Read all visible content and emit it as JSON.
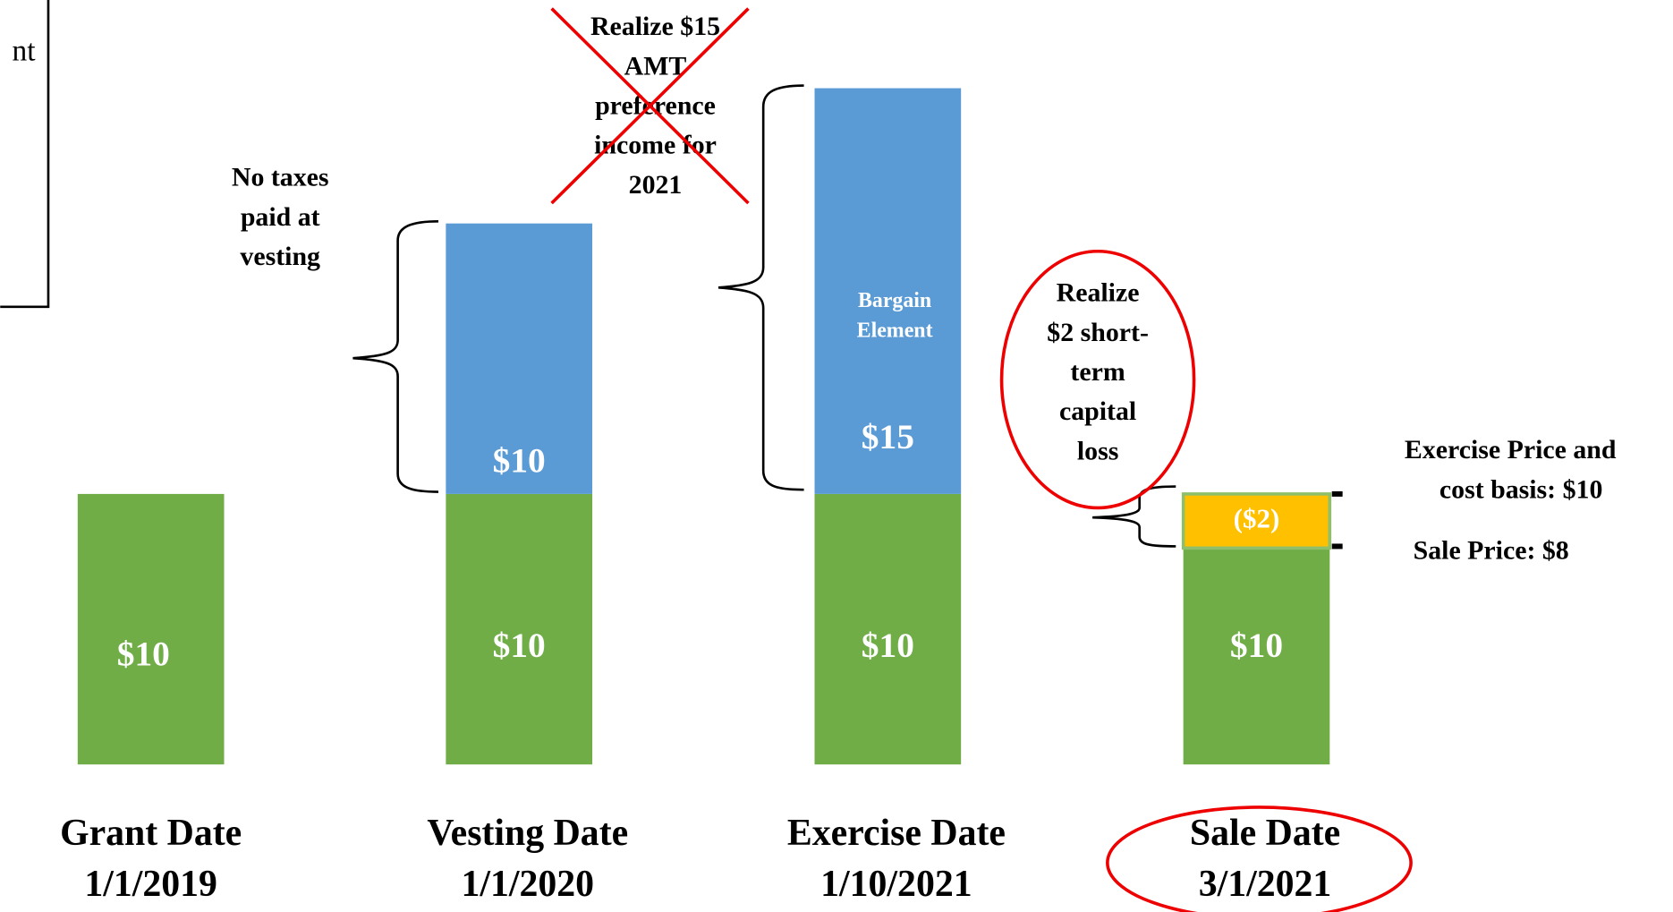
{
  "chart_data": {
    "type": "bar",
    "categories": [
      "Grant Date",
      "Vesting Date",
      "Exercise Date",
      "Sale Date"
    ],
    "dates": [
      "1/1/2019",
      "1/1/2020",
      "1/10/2021",
      "3/1/2021"
    ],
    "ylim": [
      0,
      25
    ],
    "series": [
      {
        "color": "#70ad47",
        "values": [
          10,
          10,
          10,
          10
        ],
        "value_labels": [
          "$10",
          "$10",
          "$10",
          "$10"
        ]
      },
      {
        "color": "#5b9bd5",
        "values": [
          null,
          10,
          15,
          null
        ],
        "value_labels": [
          null,
          "$10",
          "$15",
          null
        ]
      },
      {
        "color": "#ffc000",
        "values": [
          null,
          null,
          null,
          -2
        ],
        "value_labels": [
          null,
          null,
          null,
          "($2)"
        ]
      }
    ],
    "segment_note": "Bargain Element",
    "annotations": {
      "corner": "nt",
      "vesting": [
        "No taxes",
        "paid at",
        "vesting"
      ],
      "amt": [
        "Realize $15",
        "AMT",
        "preference",
        "income for",
        "2021"
      ],
      "loss": [
        "Realize",
        "$2 short-",
        "term",
        "capital",
        "loss"
      ],
      "cost": [
        "Exercise Price and",
        "cost basis: $10"
      ],
      "sale": "Sale Price: $8"
    }
  }
}
